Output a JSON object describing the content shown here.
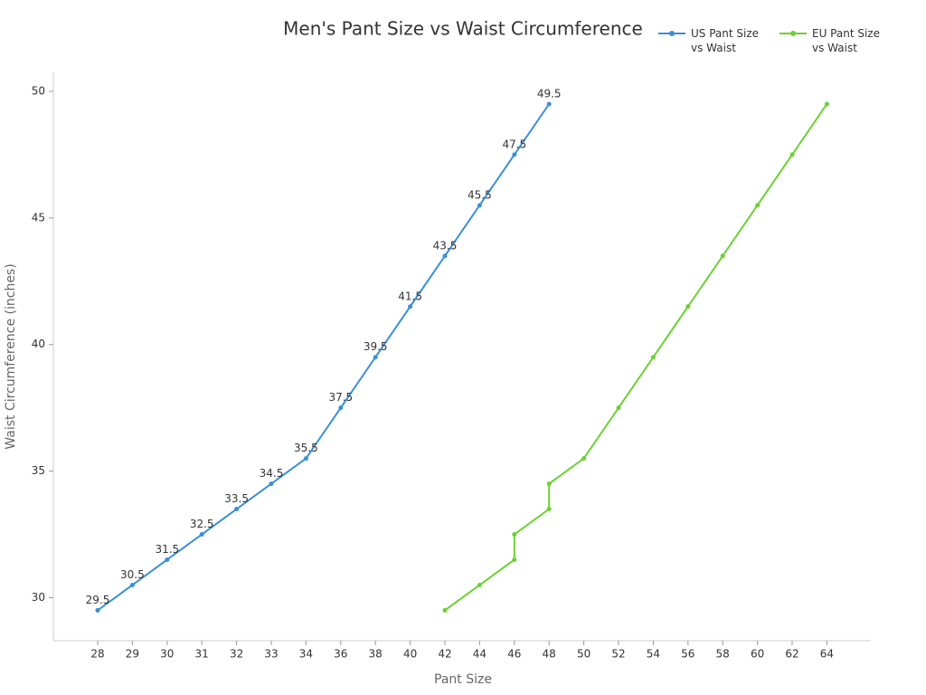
{
  "chart_data": {
    "type": "line",
    "title": "Men's Pant Size vs Waist Circumference",
    "x_label": "Pant Size",
    "y_label": "Waist Circumference (inches)",
    "categories": [
      28,
      29,
      30,
      31,
      32,
      33,
      34,
      36,
      38,
      40,
      42,
      44,
      46,
      48,
      50,
      52,
      54,
      56,
      58,
      60,
      62,
      64
    ],
    "series": [
      {
        "name": "US Pant Size vs Waist",
        "color": "#3b8fd8",
        "data_labels": true,
        "x": [
          28,
          29,
          30,
          31,
          32,
          33,
          34,
          36,
          38,
          40,
          42,
          44,
          46,
          48
        ],
        "values": [
          29.5,
          30.5,
          31.5,
          32.5,
          33.5,
          34.5,
          35.5,
          37.5,
          39.5,
          41.5,
          43.5,
          45.5,
          47.5,
          49.5
        ]
      },
      {
        "name": "EU Pant Size vs Waist",
        "color": "#6cd134",
        "data_labels": false,
        "x": [
          42,
          44,
          46,
          46,
          48,
          48,
          50,
          52,
          54,
          56,
          58,
          60,
          62,
          64
        ],
        "values": [
          29.5,
          30.5,
          31.5,
          32.5,
          33.5,
          34.5,
          35.5,
          37.5,
          39.5,
          41.5,
          43.5,
          45.5,
          47.5,
          49.5
        ]
      }
    ],
    "ylim": [
      28.3,
      50.75
    ],
    "yticks": [
      30,
      35,
      40,
      45,
      50
    ],
    "legend": "top-right"
  }
}
